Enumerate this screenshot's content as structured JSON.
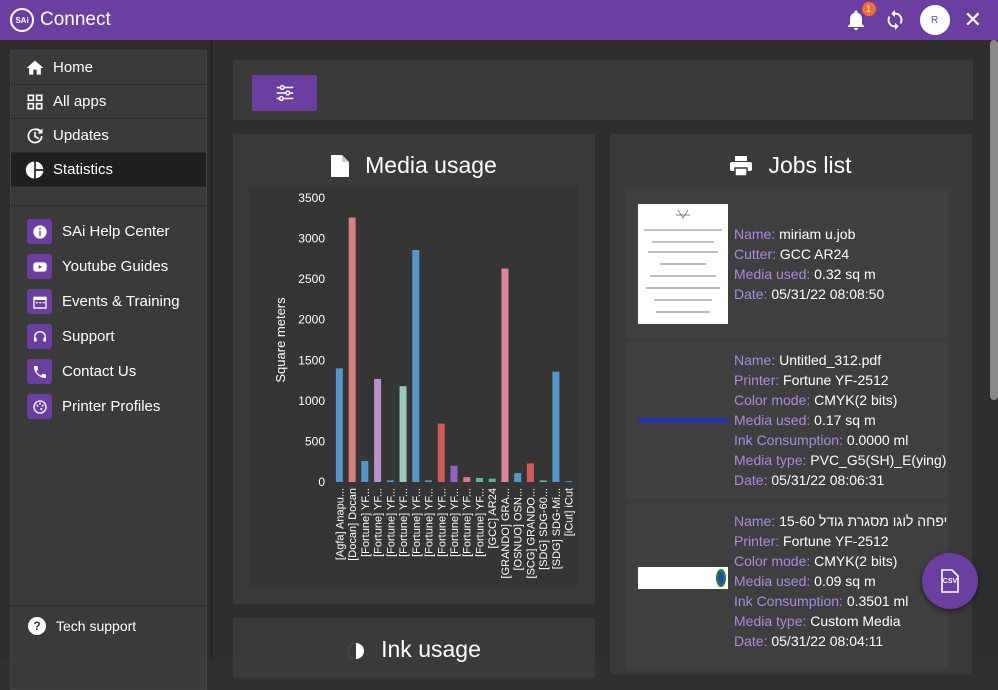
{
  "app": {
    "title": "Connect",
    "logo_text": "SAi",
    "notification_count": "1",
    "avatar_initial": "R"
  },
  "nav": [
    {
      "label": "Home",
      "icon": "home-icon"
    },
    {
      "label": "All apps",
      "icon": "grid-icon"
    },
    {
      "label": "Updates",
      "icon": "refresh-icon"
    },
    {
      "label": "Statistics",
      "icon": "pie-chart-icon"
    }
  ],
  "links": [
    {
      "label": "SAi Help Center",
      "icon": "info-icon"
    },
    {
      "label": "Youtube Guides",
      "icon": "youtube-icon"
    },
    {
      "label": "Events & Training",
      "icon": "calendar-icon"
    },
    {
      "label": "Support",
      "icon": "headset-icon"
    },
    {
      "label": "Contact Us",
      "icon": "phone-icon"
    },
    {
      "label": "Printer Profiles",
      "icon": "palette-icon"
    }
  ],
  "tech_support": "Tech support",
  "media_usage": {
    "title": "Media usage"
  },
  "ink_usage": {
    "title": "Ink usage"
  },
  "jobs_list": {
    "title": "Jobs list",
    "jobs": [
      {
        "name_label": "Name:",
        "name": "miriam u.job",
        "device_label": "Cutter:",
        "device": "GCC AR24",
        "media_used_label": "Media used:",
        "media_used": "0.32 sq m",
        "date_label": "Date:",
        "date": "05/31/22 08:08:50"
      },
      {
        "name_label": "Name:",
        "name": "Untitled_312.pdf",
        "device_label": "Printer:",
        "device": "Fortune YF-2512",
        "color_mode_label": "Color mode:",
        "color_mode": "CMYK(2 bits)",
        "media_used_label": "Media used:",
        "media_used": "0.17 sq m",
        "ink_label": "Ink Consumption:",
        "ink": "0.0000 ml",
        "media_type_label": "Media type:",
        "media_type": "PVC_G5(SH)_E(ying)",
        "date_label": "Date:",
        "date": "05/31/22 08:06:31"
      },
      {
        "name_label": "Name:",
        "name": "15-60 יפחה לוגו מסגרת גודל",
        "device_label": "Printer:",
        "device": "Fortune YF-2512",
        "color_mode_label": "Color mode:",
        "color_mode": "CMYK(2 bits)",
        "media_used_label": "Media used:",
        "media_used": "0.09 sq m",
        "ink_label": "Ink Consumption:",
        "ink": "0.3501 ml",
        "media_type_label": "Media type:",
        "media_type": "Custom Media",
        "date_label": "Date:",
        "date": "05/31/22 08:04:11"
      }
    ]
  },
  "chart_data": {
    "type": "bar",
    "ylabel": "Square meters",
    "ylim": [
      0,
      3500
    ],
    "yticks": [
      0,
      500,
      1000,
      1500,
      2000,
      2500,
      3000,
      3500
    ],
    "categories": [
      "[Agfa] Anapu...",
      "[Docan] Docan",
      "[Fortune] YF...",
      "[Fortune] YF...",
      "[Fortune] YF...",
      "[Fortune] YF...",
      "[Fortune] YF...",
      "[Fortune] YF...",
      "[Fortune] YF...",
      "[Fortune] YF...",
      "[Fortune] YF...",
      "[Fortune] YF...",
      "[GCC] AR24",
      "[GRANDO] GRA...",
      "[OSNUO] OSN...",
      "[SCG] GRANDO...",
      "[SDG] SDG-60...",
      "[SDG] SDG-Mi...",
      "[iCut] iCut"
    ],
    "values": [
      1400,
      3260,
      260,
      1270,
      20,
      1180,
      2860,
      20,
      720,
      200,
      60,
      50,
      40,
      2630,
      110,
      230,
      20,
      1360,
      10
    ],
    "colors": [
      "#5aa0d8",
      "#e8888f",
      "#5aa0d8",
      "#c49bd8",
      "#5aa0d8",
      "#a9d8c8",
      "#5aa0d8",
      "#5aa0d8",
      "#e06060",
      "#9b6ad0",
      "#e8888f",
      "#5ac8a0",
      "#5ac8a0",
      "#ef8fa8",
      "#5aa0d8",
      "#e06060",
      "#5ac8a0",
      "#5aa0d8",
      "#5aa0d8"
    ]
  },
  "colors": {
    "accent": "#6a3fa0",
    "label": "#a48ee0"
  },
  "csv_button": {
    "label": "CSV"
  }
}
